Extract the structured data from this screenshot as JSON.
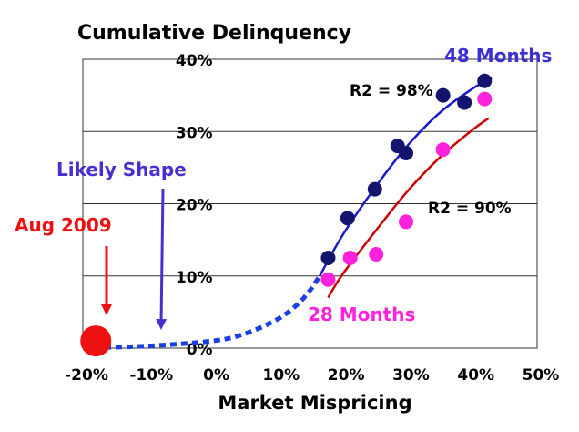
{
  "chart_data": {
    "type": "scatter",
    "title": "Cumulative Delinquency",
    "xlabel": "Market Mispricing",
    "ylabel": "",
    "xlim": [
      -20,
      50
    ],
    "ylim": [
      0,
      40
    ],
    "x_ticks": [
      "-20%",
      "-10%",
      "0%",
      "10%",
      "20%",
      "30%",
      "40%",
      "50%"
    ],
    "y_ticks": [
      "0%",
      "10%",
      "20%",
      "30%",
      "40%"
    ],
    "grid": "horizontal",
    "series": [
      {
        "name": "48 Months",
        "marker_color": "#14146e",
        "points": [
          [
            17.8,
            12.5
          ],
          [
            20.8,
            18
          ],
          [
            25,
            22
          ],
          [
            28.5,
            28
          ],
          [
            29.8,
            27
          ],
          [
            35.5,
            35
          ],
          [
            38.8,
            34
          ],
          [
            41.9,
            37
          ]
        ],
        "fit_color": "#1a1acc",
        "fit": [
          [
            16.5,
            10
          ],
          [
            20,
            15.6
          ],
          [
            25,
            22.2
          ],
          [
            30,
            28
          ],
          [
            35,
            32.6
          ],
          [
            40,
            35.9
          ],
          [
            43,
            37.4
          ]
        ],
        "r2_label": "R2 = 98%"
      },
      {
        "name": "28 Months",
        "marker_color": "#ff22dd",
        "points": [
          [
            17.8,
            9.5
          ],
          [
            21.2,
            12.5
          ],
          [
            25.2,
            13
          ],
          [
            29.8,
            17.5
          ],
          [
            35.5,
            27.5
          ],
          [
            41.9,
            34.5
          ]
        ],
        "fit_color": "#cc0000",
        "fit": [
          [
            17.8,
            7
          ],
          [
            20,
            10.2
          ],
          [
            25,
            16.1
          ],
          [
            30,
            21.7
          ],
          [
            35,
            26.4
          ],
          [
            40,
            30.2
          ],
          [
            42.5,
            31.8
          ]
        ],
        "r2_label": "R2 = 90%"
      }
    ],
    "likely_shape": {
      "label": "Likely Shape",
      "color": "#1a3fe0",
      "curve": [
        [
          -20,
          0
        ],
        [
          -10,
          0.3
        ],
        [
          0,
          1
        ],
        [
          5,
          2
        ],
        [
          10,
          4
        ],
        [
          13,
          6
        ],
        [
          15,
          8
        ],
        [
          16.5,
          10
        ]
      ]
    },
    "aug_2009": {
      "label": "Aug 2009",
      "x": -18,
      "y": 1,
      "color": "#ee1111"
    }
  }
}
